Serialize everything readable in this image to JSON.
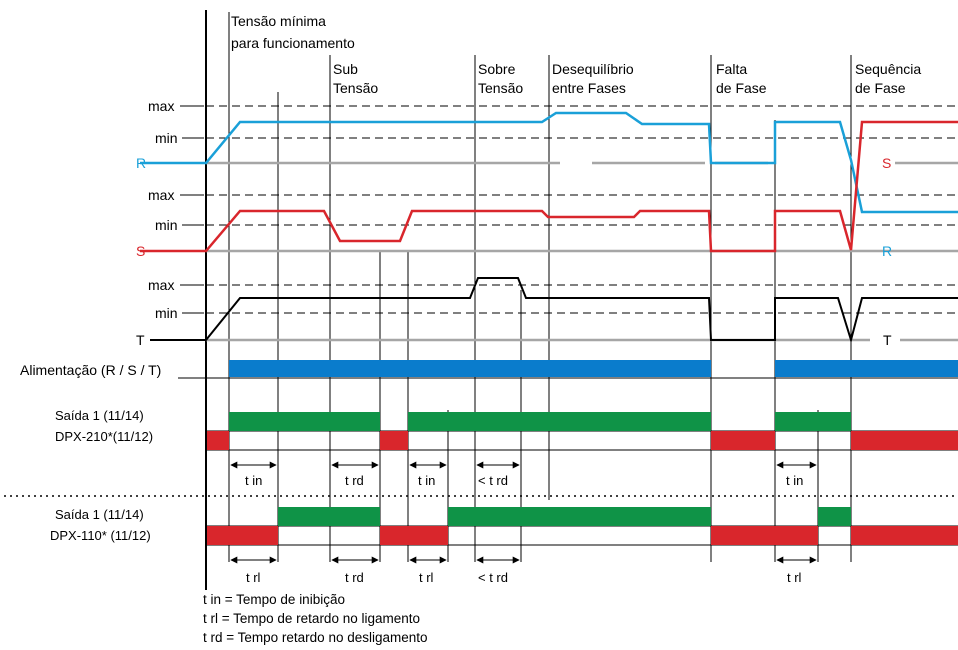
{
  "labels": {
    "max": "max",
    "min": "min",
    "phase_r": "R",
    "phase_s": "S",
    "phase_t": "T",
    "supply": "Alimentação (R / S / T)",
    "out1_top": "Saída 1  (11/14)",
    "out1_model": "DPX-210*(11/12)",
    "out2_top": "Saída 1  (11/14)",
    "out2_model": "DPX-110* (11/12)"
  },
  "events": {
    "min_voltage_l1": "Tensão mínima",
    "min_voltage_l2": "para funcionamento",
    "under_l1": "Sub",
    "under_l2": "Tensão",
    "over_l1": "Sobre",
    "over_l2": "Tensão",
    "unbal_l1": "Desequilíbrio",
    "unbal_l2": "entre Fases",
    "loss_l1": "Falta",
    "loss_l2": "de Fase",
    "seq_l1": "Sequência",
    "seq_l2": "de Fase"
  },
  "timers": {
    "t_in": "t in",
    "t_rd": "t rd",
    "lt_rd": "< t rd",
    "t_rl": "t rl"
  },
  "inline_phase": {
    "s_after_seq": "S",
    "r_after_seq": "R",
    "t_after_seq": "T"
  },
  "legend": [
    "t in = Tempo de inibição",
    "t rl = Tempo de retardo no ligamento",
    "t rd = Tempo retardo no desligamento"
  ],
  "colors": {
    "phase_r": "#1aa0d8",
    "phase_s": "#d9262c",
    "phase_t": "#000000",
    "supply_bar": "#0a7ccc",
    "relay_on": "#0f9347",
    "relay_off": "#d9262c"
  }
}
